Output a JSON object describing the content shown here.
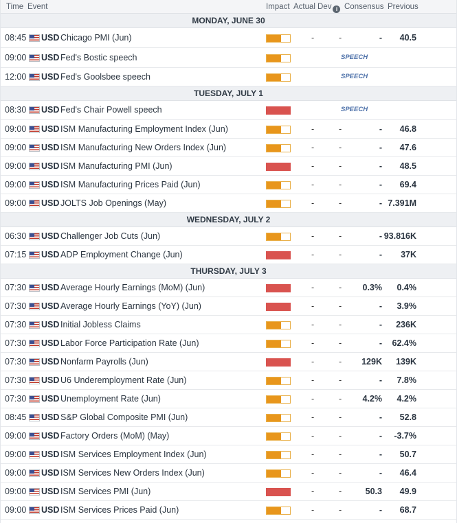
{
  "header": {
    "time": "Time",
    "event": "Event",
    "impact": "Impact",
    "actual": "Actual",
    "dev": "Dev",
    "consensus": "Consensus",
    "previous": "Previous"
  },
  "colors": {
    "high": "#d9534f",
    "medium": "#e8961c"
  },
  "days": [
    {
      "label": "MONDAY, JUNE 30",
      "events": [
        {
          "time": "08:45",
          "currency": "USD",
          "name": "Chicago PMI (Jun)",
          "impact": "medium",
          "actual": "-",
          "dev": "-",
          "consensus": "-",
          "previous": "40.5",
          "speech": ""
        },
        {
          "time": "09:00",
          "currency": "USD",
          "name": "Fed's Bostic speech",
          "impact": "medium",
          "actual": "",
          "dev": "",
          "consensus": "",
          "previous": "",
          "speech": "SPEECH"
        },
        {
          "time": "12:00",
          "currency": "USD",
          "name": "Fed's Goolsbee speech",
          "impact": "medium",
          "actual": "",
          "dev": "",
          "consensus": "",
          "previous": "",
          "speech": "SPEECH"
        }
      ]
    },
    {
      "label": "TUESDAY, JULY 1",
      "events": [
        {
          "time": "08:30",
          "currency": "USD",
          "name": "Fed's Chair Powell speech",
          "impact": "high",
          "actual": "",
          "dev": "",
          "consensus": "",
          "previous": "",
          "speech": "SPEECH"
        },
        {
          "time": "09:00",
          "currency": "USD",
          "name": "ISM Manufacturing Employment Index (Jun)",
          "impact": "medium",
          "actual": "-",
          "dev": "-",
          "consensus": "-",
          "previous": "46.8",
          "speech": ""
        },
        {
          "time": "09:00",
          "currency": "USD",
          "name": "ISM Manufacturing New Orders Index (Jun)",
          "impact": "medium",
          "actual": "-",
          "dev": "-",
          "consensus": "-",
          "previous": "47.6",
          "speech": ""
        },
        {
          "time": "09:00",
          "currency": "USD",
          "name": "ISM Manufacturing PMI (Jun)",
          "impact": "high",
          "actual": "-",
          "dev": "-",
          "consensus": "-",
          "previous": "48.5",
          "speech": ""
        },
        {
          "time": "09:00",
          "currency": "USD",
          "name": "ISM Manufacturing Prices Paid (Jun)",
          "impact": "medium",
          "actual": "-",
          "dev": "-",
          "consensus": "-",
          "previous": "69.4",
          "speech": ""
        },
        {
          "time": "09:00",
          "currency": "USD",
          "name": "JOLTS Job Openings (May)",
          "impact": "medium",
          "actual": "-",
          "dev": "-",
          "consensus": "-",
          "previous": "7.391M",
          "speech": ""
        }
      ]
    },
    {
      "label": "WEDNESDAY, JULY 2",
      "events": [
        {
          "time": "06:30",
          "currency": "USD",
          "name": "Challenger Job Cuts (Jun)",
          "impact": "medium",
          "actual": "-",
          "dev": "-",
          "consensus": "-",
          "previous": "93.816K",
          "speech": ""
        },
        {
          "time": "07:15",
          "currency": "USD",
          "name": "ADP Employment Change (Jun)",
          "impact": "high",
          "actual": "-",
          "dev": "-",
          "consensus": "-",
          "previous": "37K",
          "speech": ""
        }
      ]
    },
    {
      "label": "THURSDAY, JULY 3",
      "events": [
        {
          "time": "07:30",
          "currency": "USD",
          "name": "Average Hourly Earnings (MoM) (Jun)",
          "impact": "high",
          "actual": "-",
          "dev": "-",
          "consensus": "0.3%",
          "previous": "0.4%",
          "speech": ""
        },
        {
          "time": "07:30",
          "currency": "USD",
          "name": "Average Hourly Earnings (YoY) (Jun)",
          "impact": "high",
          "actual": "-",
          "dev": "-",
          "consensus": "-",
          "previous": "3.9%",
          "speech": ""
        },
        {
          "time": "07:30",
          "currency": "USD",
          "name": "Initial Jobless Claims",
          "impact": "medium",
          "actual": "-",
          "dev": "-",
          "consensus": "-",
          "previous": "236K",
          "speech": ""
        },
        {
          "time": "07:30",
          "currency": "USD",
          "name": "Labor Force Participation Rate (Jun)",
          "impact": "medium",
          "actual": "-",
          "dev": "-",
          "consensus": "-",
          "previous": "62.4%",
          "speech": ""
        },
        {
          "time": "07:30",
          "currency": "USD",
          "name": "Nonfarm Payrolls (Jun)",
          "impact": "high",
          "actual": "-",
          "dev": "-",
          "consensus": "129K",
          "previous": "139K",
          "speech": ""
        },
        {
          "time": "07:30",
          "currency": "USD",
          "name": "U6 Underemployment Rate (Jun)",
          "impact": "medium",
          "actual": "-",
          "dev": "-",
          "consensus": "-",
          "previous": "7.8%",
          "speech": ""
        },
        {
          "time": "07:30",
          "currency": "USD",
          "name": "Unemployment Rate (Jun)",
          "impact": "medium",
          "actual": "-",
          "dev": "-",
          "consensus": "4.2%",
          "previous": "4.2%",
          "speech": ""
        },
        {
          "time": "08:45",
          "currency": "USD",
          "name": "S&P Global Composite PMI (Jun)",
          "impact": "medium",
          "actual": "-",
          "dev": "-",
          "consensus": "-",
          "previous": "52.8",
          "speech": ""
        },
        {
          "time": "09:00",
          "currency": "USD",
          "name": "Factory Orders (MoM) (May)",
          "impact": "medium",
          "actual": "-",
          "dev": "-",
          "consensus": "-",
          "previous": "-3.7%",
          "speech": ""
        },
        {
          "time": "09:00",
          "currency": "USD",
          "name": "ISM Services Employment Index (Jun)",
          "impact": "medium",
          "actual": "-",
          "dev": "-",
          "consensus": "-",
          "previous": "50.7",
          "speech": ""
        },
        {
          "time": "09:00",
          "currency": "USD",
          "name": "ISM Services New Orders Index (Jun)",
          "impact": "medium",
          "actual": "-",
          "dev": "-",
          "consensus": "-",
          "previous": "46.4",
          "speech": ""
        },
        {
          "time": "09:00",
          "currency": "USD",
          "name": "ISM Services PMI (Jun)",
          "impact": "high",
          "actual": "-",
          "dev": "-",
          "consensus": "50.3",
          "previous": "49.9",
          "speech": ""
        },
        {
          "time": "09:00",
          "currency": "USD",
          "name": "ISM Services Prices Paid (Jun)",
          "impact": "medium",
          "actual": "-",
          "dev": "-",
          "consensus": "-",
          "previous": "68.7",
          "speech": ""
        }
      ]
    }
  ]
}
